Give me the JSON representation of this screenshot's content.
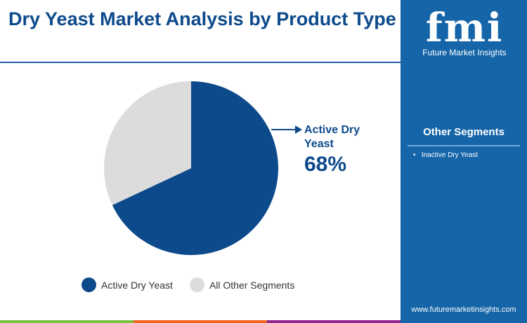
{
  "title": "Dry Yeast Market Analysis by Product Type",
  "brand": {
    "logo_text": "fmi",
    "name": "Future Market Insights",
    "url": "www.futuremarketinsights.com"
  },
  "other_segments": {
    "heading": "Other Segments",
    "items": [
      "Inactive Dry Yeast"
    ]
  },
  "colors": {
    "primary": "#0d4a8c",
    "other": "#dcdcdc",
    "panel": "#1565a8",
    "bars": [
      "#7cc142",
      "#f26522",
      "#93278f",
      "#1565a8"
    ]
  },
  "chart_data": {
    "type": "pie",
    "title": "Dry Yeast Market Analysis by Product Type",
    "categories": [
      "Active Dry Yeast",
      "All Other Segments"
    ],
    "values": [
      68,
      32
    ],
    "unit": "%",
    "annotation": {
      "label": "Active Dry Yeast",
      "value": "68%"
    },
    "legend_placement": "bottom"
  }
}
